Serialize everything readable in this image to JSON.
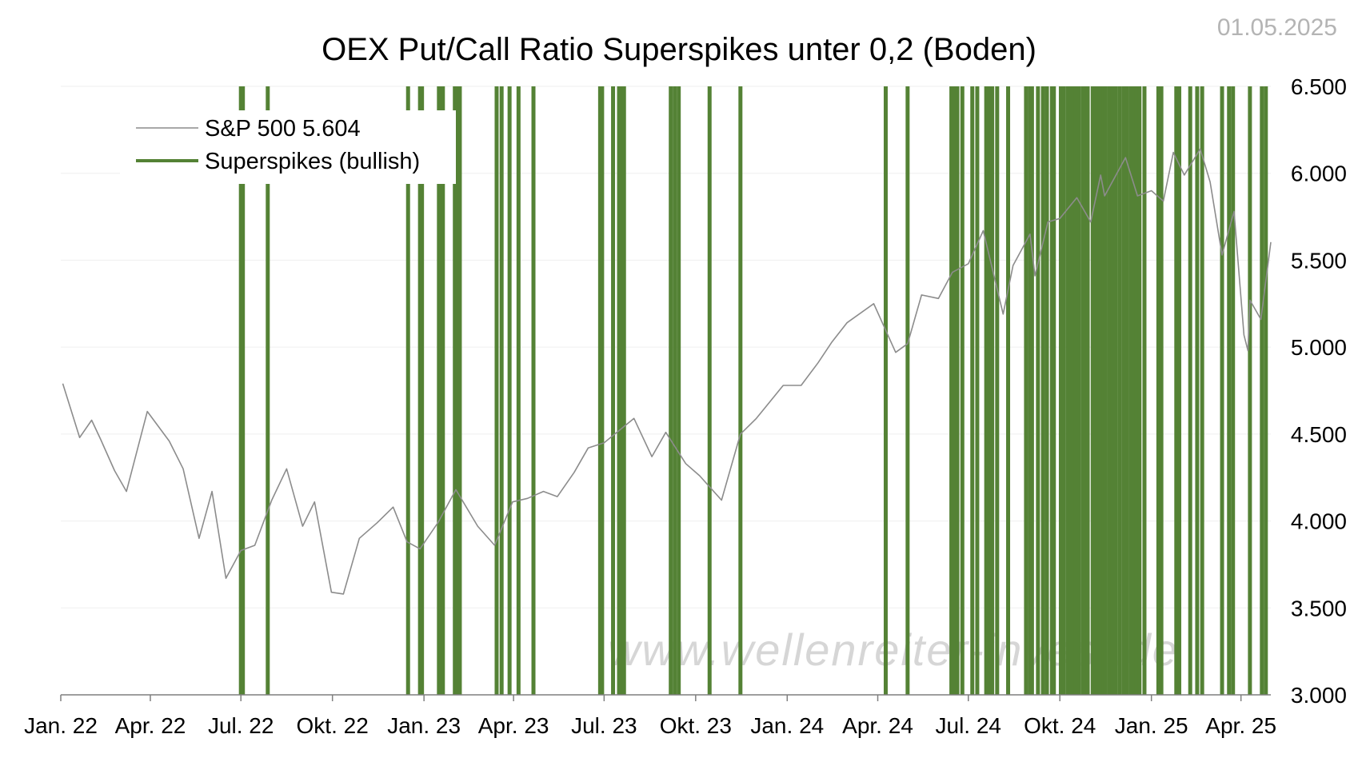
{
  "date_stamp": "01.05.2025",
  "watermark": "www.wellenreiter-invest.de",
  "colors": {
    "spike": "#548235",
    "price": "#8c8c8c",
    "grid": "#efefef",
    "axis": "#7f7f7f"
  },
  "chart_data": {
    "type": "line",
    "title": "OEX Put/Call Ratio Superspikes unter 0,2 (Boden)",
    "xlabel": "",
    "ylabel": "",
    "ylim": [
      3000,
      6500
    ],
    "xlim": [
      "2022-01-01",
      "2025-05-01"
    ],
    "y_axis_position": "right",
    "grid": "horizontal",
    "legend_position": "top-left",
    "y_ticks": [
      {
        "value": 3000,
        "label": "3.000"
      },
      {
        "value": 3500,
        "label": "3.500"
      },
      {
        "value": 4000,
        "label": "4.000"
      },
      {
        "value": 4500,
        "label": "4.500"
      },
      {
        "value": 5000,
        "label": "5.000"
      },
      {
        "value": 5500,
        "label": "5.500"
      },
      {
        "value": 6000,
        "label": "6.000"
      },
      {
        "value": 6500,
        "label": "6.500"
      }
    ],
    "x_ticks": [
      {
        "date": "2022-01-01",
        "label": "Jan. 22"
      },
      {
        "date": "2022-04-01",
        "label": "Apr. 22"
      },
      {
        "date": "2022-07-01",
        "label": "Jul. 22"
      },
      {
        "date": "2022-10-01",
        "label": "Okt. 22"
      },
      {
        "date": "2023-01-01",
        "label": "Jan. 23"
      },
      {
        "date": "2023-04-01",
        "label": "Apr. 23"
      },
      {
        "date": "2023-07-01",
        "label": "Jul. 23"
      },
      {
        "date": "2023-10-01",
        "label": "Okt. 23"
      },
      {
        "date": "2024-01-01",
        "label": "Jan. 24"
      },
      {
        "date": "2024-04-01",
        "label": "Apr. 24"
      },
      {
        "date": "2024-07-01",
        "label": "Jul. 24"
      },
      {
        "date": "2024-10-01",
        "label": "Okt. 24"
      },
      {
        "date": "2025-01-01",
        "label": "Jan. 25"
      },
      {
        "date": "2025-04-01",
        "label": "Apr. 25"
      }
    ],
    "series": [
      {
        "name": "S&P 500 5.604",
        "type": "line",
        "x": [
          "2022-01-03",
          "2022-01-20",
          "2022-02-01",
          "2022-02-10",
          "2022-02-24",
          "2022-03-08",
          "2022-03-29",
          "2022-04-20",
          "2022-05-04",
          "2022-05-20",
          "2022-06-02",
          "2022-06-16",
          "2022-07-01",
          "2022-07-15",
          "2022-08-01",
          "2022-08-16",
          "2022-09-01",
          "2022-09-13",
          "2022-09-30",
          "2022-10-12",
          "2022-10-28",
          "2022-11-15",
          "2022-12-01",
          "2022-12-15",
          "2022-12-28",
          "2023-01-15",
          "2023-02-02",
          "2023-02-24",
          "2023-03-13",
          "2023-03-31",
          "2023-04-15",
          "2023-05-01",
          "2023-05-15",
          "2023-06-01",
          "2023-06-15",
          "2023-07-01",
          "2023-07-31",
          "2023-08-18",
          "2023-09-01",
          "2023-09-21",
          "2023-10-05",
          "2023-10-27",
          "2023-11-15",
          "2023-12-01",
          "2023-12-28",
          "2024-01-15",
          "2024-02-01",
          "2024-02-15",
          "2024-03-01",
          "2024-03-28",
          "2024-04-19",
          "2024-05-01",
          "2024-05-15",
          "2024-06-01",
          "2024-06-15",
          "2024-07-01",
          "2024-07-16",
          "2024-08-05",
          "2024-08-15",
          "2024-09-01",
          "2024-09-06",
          "2024-09-19",
          "2024-10-01",
          "2024-10-18",
          "2024-11-01",
          "2024-11-11",
          "2024-11-15",
          "2024-12-06",
          "2024-12-18",
          "2025-01-01",
          "2025-01-13",
          "2025-01-23",
          "2025-02-03",
          "2025-02-19",
          "2025-03-01",
          "2025-03-13",
          "2025-03-25",
          "2025-04-04",
          "2025-04-08",
          "2025-04-10",
          "2025-04-21",
          "2025-05-01"
        ],
        "values": [
          4790,
          4480,
          4580,
          4470,
          4290,
          4170,
          4630,
          4460,
          4300,
          3900,
          4170,
          3670,
          3830,
          3860,
          4120,
          4300,
          3970,
          4110,
          3590,
          3580,
          3900,
          3990,
          4080,
          3880,
          3840,
          3990,
          4180,
          3970,
          3860,
          4110,
          4130,
          4170,
          4140,
          4280,
          4420,
          4450,
          4590,
          4370,
          4510,
          4330,
          4260,
          4120,
          4500,
          4590,
          4780,
          4780,
          4910,
          5030,
          5140,
          5250,
          4970,
          5020,
          5300,
          5280,
          5430,
          5480,
          5670,
          5190,
          5470,
          5650,
          5410,
          5720,
          5740,
          5860,
          5720,
          5990,
          5870,
          6090,
          5870,
          5900,
          5840,
          6120,
          5990,
          6140,
          5950,
          5530,
          5780,
          5070,
          4980,
          5270,
          5160,
          5604
        ]
      },
      {
        "name": "Superspikes (bullish)",
        "type": "vlines",
        "dates": [
          "2022-07-01",
          "2022-07-03",
          "2022-07-28",
          "2022-12-16",
          "2022-12-28",
          "2022-12-30",
          "2023-01-16",
          "2023-01-18",
          "2023-01-20",
          "2023-02-01",
          "2023-02-03",
          "2023-02-06",
          "2023-03-15",
          "2023-03-20",
          "2023-03-28",
          "2023-04-06",
          "2023-04-21",
          "2023-06-27",
          "2023-06-29",
          "2023-07-10",
          "2023-07-16",
          "2023-07-18",
          "2023-07-21",
          "2023-09-06",
          "2023-09-10",
          "2023-09-14",
          "2023-10-15",
          "2023-11-15",
          "2024-04-09",
          "2024-05-01",
          "2024-06-14",
          "2024-06-16",
          "2024-06-18",
          "2024-06-20",
          "2024-06-25",
          "2024-07-05",
          "2024-07-10",
          "2024-07-19",
          "2024-07-22",
          "2024-07-25",
          "2024-07-30",
          "2024-08-10",
          "2024-08-28",
          "2024-09-01",
          "2024-09-03",
          "2024-09-09",
          "2024-09-14",
          "2024-09-18",
          "2024-09-23",
          "2024-09-25",
          "2024-10-02",
          "2024-10-05",
          "2024-10-09",
          "2024-10-12",
          "2024-10-15",
          "2024-10-17",
          "2024-10-20",
          "2024-10-24",
          "2024-10-27",
          "2024-10-29",
          "2024-11-03",
          "2024-11-06",
          "2024-11-08",
          "2024-11-11",
          "2024-11-14",
          "2024-11-16",
          "2024-11-20",
          "2024-11-23",
          "2024-11-26",
          "2024-11-30",
          "2024-12-04",
          "2024-12-07",
          "2024-12-11",
          "2024-12-14",
          "2024-12-17",
          "2024-12-20",
          "2024-12-25",
          "2025-01-08",
          "2025-01-11",
          "2025-01-26",
          "2025-01-29",
          "2025-02-09",
          "2025-02-16",
          "2025-02-21",
          "2025-03-13",
          "2025-03-20",
          "2025-03-24",
          "2025-04-10",
          "2025-04-22",
          "2025-04-26"
        ]
      }
    ],
    "legend": [
      {
        "label": "S&P 500 5.604",
        "style": "thin-gray-line"
      },
      {
        "label": "Superspikes (bullish)",
        "style": "thick-green-line"
      }
    ]
  }
}
